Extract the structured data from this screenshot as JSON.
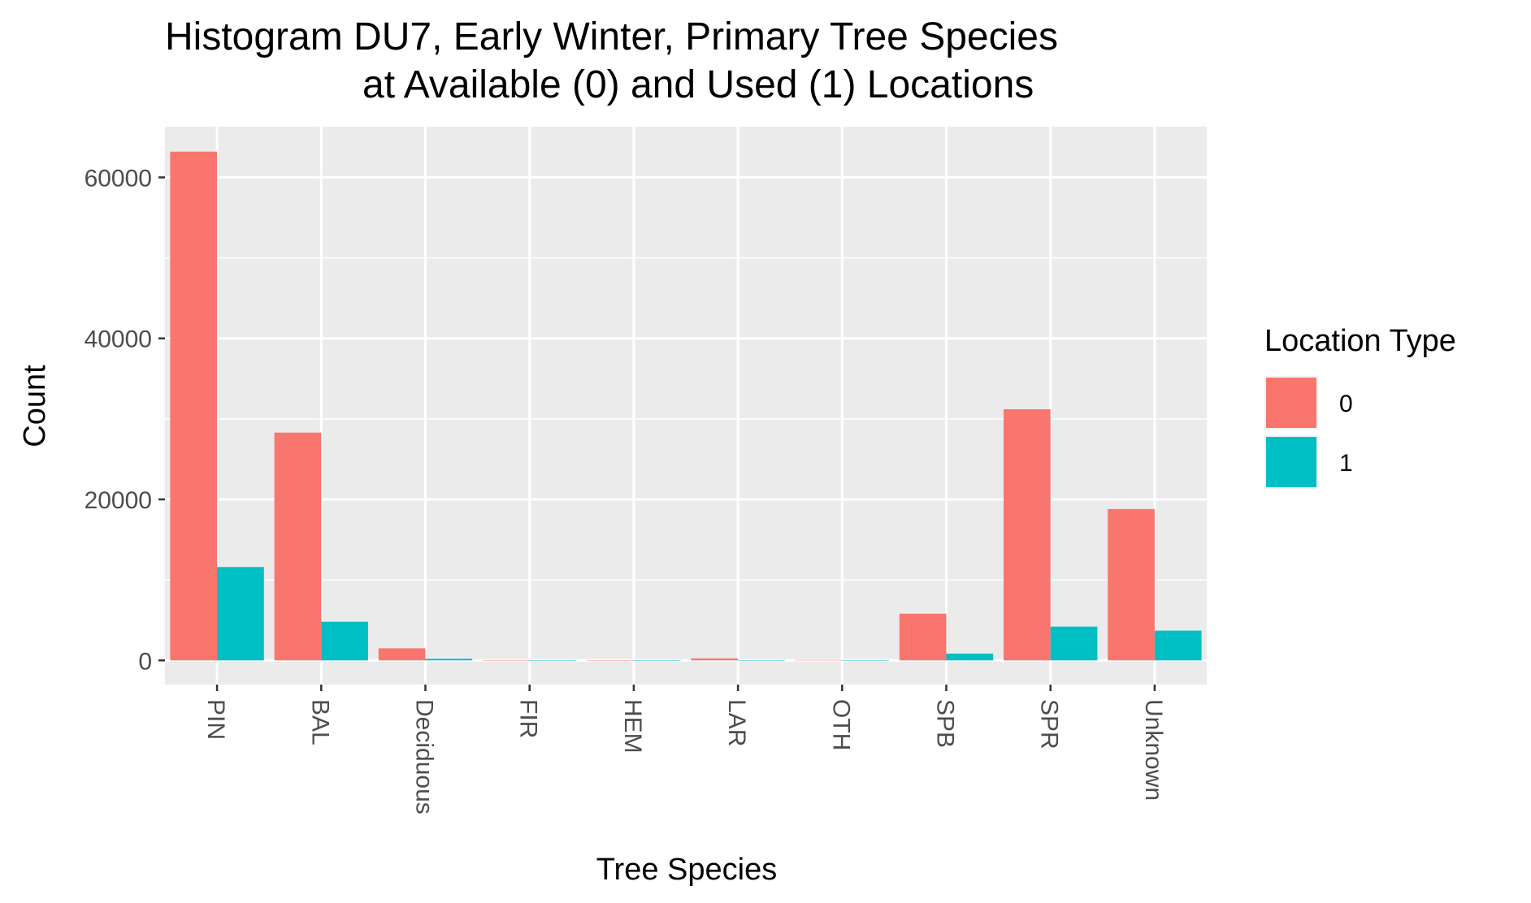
{
  "chart_data": {
    "type": "bar",
    "title_lines": [
      "Histogram DU7, Early Winter, Primary Tree Species",
      "at Available (0) and Used (1) Locations"
    ],
    "xlabel": "Tree Species",
    "ylabel": "Count",
    "categories": [
      "PIN",
      "BAL",
      "Deciduous",
      "FIR",
      "HEM",
      "LAR",
      "OTH",
      "SPB",
      "SPR",
      "Unknown"
    ],
    "series": [
      {
        "name": "0",
        "color": "#F8766D",
        "values": [
          63200,
          28300,
          1500,
          30,
          20,
          250,
          50,
          5800,
          31200,
          18800
        ]
      },
      {
        "name": "1",
        "color": "#00BFC4",
        "values": [
          11600,
          4800,
          200,
          5,
          3,
          20,
          10,
          850,
          4200,
          3700
        ]
      }
    ],
    "ylim": [
      -3000,
      66300
    ],
    "yticks": [
      0,
      20000,
      40000,
      60000
    ],
    "ytick_labels": [
      "0",
      "20000",
      "40000",
      "60000"
    ],
    "legend": {
      "title": "Location Type",
      "position": "right"
    },
    "grid": true,
    "panel_background": "#EBEBEB"
  }
}
